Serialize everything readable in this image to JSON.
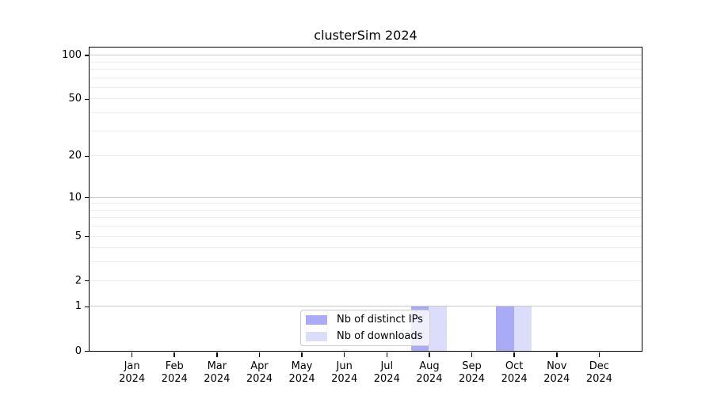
{
  "chart_data": {
    "type": "bar",
    "title": "clusterSim 2024",
    "x_axis": {
      "months": [
        "Jan",
        "Feb",
        "Mar",
        "Apr",
        "May",
        "Jun",
        "Jul",
        "Aug",
        "Sep",
        "Oct",
        "Nov",
        "Dec"
      ],
      "year": "2024"
    },
    "y_axis": {
      "scale": "log1p",
      "tick_labels": [
        0,
        1,
        2,
        5,
        10,
        20,
        50,
        100
      ],
      "major_gridlines": [
        1,
        10,
        100
      ],
      "minor_gridlines": [
        2,
        3,
        4,
        5,
        6,
        7,
        8,
        9,
        20,
        30,
        40,
        50,
        60,
        70,
        80,
        90
      ],
      "ylim_bottom": 0
    },
    "series": [
      {
        "name": "Nb of distinct IPs",
        "color": "#a9abf6",
        "values": [
          0,
          0,
          0,
          0,
          0,
          0,
          0,
          1,
          0,
          1,
          0,
          0
        ]
      },
      {
        "name": "Nb of downloads",
        "color": "#dcddfb",
        "values": [
          0,
          0,
          0,
          0,
          0,
          0,
          0,
          1,
          0,
          1,
          0,
          0
        ]
      }
    ],
    "legend": {
      "position": "bottom-center"
    },
    "grid": "on"
  },
  "colors": {
    "major_grid": "#c9c9c9",
    "minor_grid": "#ececec",
    "spine": "#000000",
    "legend_border": "#cccccc",
    "bar_distinct_ips": "#a9abf6",
    "bar_downloads": "#dcddfb"
  }
}
